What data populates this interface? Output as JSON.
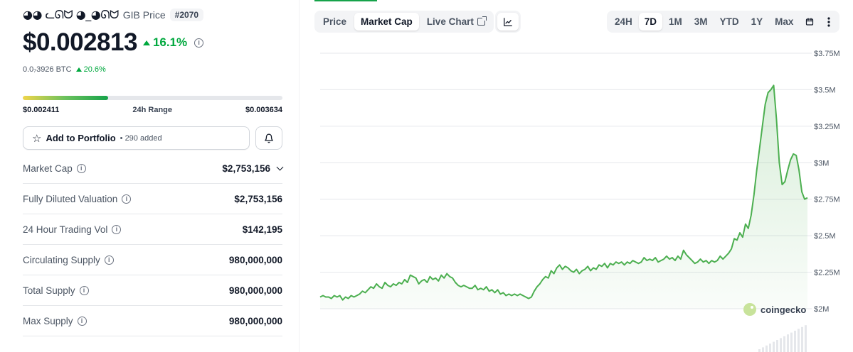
{
  "coin": {
    "logo_text": "◕◕ ᓚᘏᗢ ◕_◕ᘏᗢ",
    "name_label": "GIB Price",
    "rank": "#2070"
  },
  "price": {
    "value": "$0.002813",
    "change_24h": "16.1%",
    "btc_value": "0.0₇3926 BTC",
    "btc_change": "20.6%"
  },
  "range_24h": {
    "low": "$0.002411",
    "label": "24h Range",
    "high": "$0.003634",
    "position_fraction": 0.33
  },
  "portfolio": {
    "label": "Add to Portfolio",
    "count": "• 290 added"
  },
  "stats": [
    {
      "label": "Market Cap",
      "value": "$2,753,156",
      "has_chevron": true
    },
    {
      "label": "Fully Diluted Valuation",
      "value": "$2,753,156"
    },
    {
      "label": "24 Hour Trading Vol",
      "value": "$142,195"
    },
    {
      "label": "Circulating Supply",
      "value": "980,000,000"
    },
    {
      "label": "Total Supply",
      "value": "980,000,000"
    },
    {
      "label": "Max Supply",
      "value": "980,000,000"
    }
  ],
  "chart_tabs": [
    {
      "label": "Price",
      "active": false
    },
    {
      "label": "Market Cap",
      "active": true
    },
    {
      "label": "Live Chart",
      "active": false
    }
  ],
  "time_ranges": [
    {
      "label": "24H",
      "active": false
    },
    {
      "label": "7D",
      "active": true
    },
    {
      "label": "1M",
      "active": false
    },
    {
      "label": "3M",
      "active": false
    },
    {
      "label": "YTD",
      "active": false
    },
    {
      "label": "1Y",
      "active": false
    },
    {
      "label": "Max",
      "active": false
    }
  ],
  "icons": {
    "star": "star-icon",
    "bell": "bell-icon",
    "info": "info-icon",
    "external": "external-link-icon",
    "line_chart": "line-chart-icon",
    "calendar": "calendar-icon",
    "more": "more-vertical-icon"
  },
  "colors": {
    "up": "#00a83e",
    "line": "#4caf50",
    "fill": "#e8f5e9",
    "accent": "#16a34a"
  },
  "chart_data": {
    "type": "area",
    "watermark": "coingecko",
    "y_ticks": [
      "$3.75M",
      "$3.5M",
      "$3.25M",
      "$3M",
      "$2.75M",
      "$2.5M",
      "$2.25M",
      "$2M"
    ],
    "y_tick_values": [
      3.75,
      3.5,
      3.25,
      3.0,
      2.75,
      2.5,
      2.25,
      2.0
    ],
    "ylim": [
      2.0,
      3.75
    ],
    "grid": true,
    "series": [
      {
        "values": [
          2.08,
          2.09,
          2.08,
          2.08,
          2.07,
          2.09,
          2.08,
          2.09,
          2.06,
          2.08,
          2.07,
          2.09,
          2.08,
          2.09,
          2.1,
          2.12,
          2.11,
          2.13,
          2.15,
          2.14,
          2.17,
          2.15,
          2.14,
          2.18,
          2.16,
          2.15,
          2.17,
          2.16,
          2.18,
          2.17,
          2.2,
          2.18,
          2.23,
          2.22,
          2.21,
          2.17,
          2.19,
          2.2,
          2.18,
          2.22,
          2.2,
          2.21,
          2.19,
          2.23,
          2.21,
          2.24,
          2.22,
          2.21,
          2.18,
          2.16,
          2.15,
          2.16,
          2.15,
          2.14,
          2.14,
          2.16,
          2.13,
          2.14,
          2.13,
          2.15,
          2.12,
          2.13,
          2.11,
          2.13,
          2.1,
          2.11,
          2.09,
          2.1,
          2.09,
          2.1,
          2.09,
          2.1,
          2.09,
          2.08,
          2.07,
          2.08,
          2.12,
          2.15,
          2.17,
          2.2,
          2.22,
          2.21,
          2.26,
          2.24,
          2.28,
          2.3,
          2.27,
          2.29,
          2.28,
          2.26,
          2.25,
          2.27,
          2.24,
          2.26,
          2.27,
          2.29,
          2.26,
          2.28,
          2.27,
          2.3,
          2.29,
          2.31,
          2.28,
          2.31,
          2.3,
          2.32,
          2.31,
          2.32,
          2.3,
          2.32,
          2.31,
          2.33,
          2.32,
          2.31,
          2.32,
          2.35,
          2.33,
          2.34,
          2.33,
          2.35,
          2.32,
          2.33,
          2.34,
          2.36,
          2.34,
          2.35,
          2.33,
          2.36,
          2.34,
          2.4,
          2.37,
          2.35,
          2.33,
          2.31,
          2.32,
          2.34,
          2.32,
          2.33,
          2.31,
          2.33,
          2.32,
          2.33,
          2.36,
          2.34,
          2.36,
          2.38,
          2.41,
          2.48,
          2.47,
          2.52,
          2.49,
          2.58,
          2.55,
          2.64,
          2.78,
          2.95,
          3.1,
          3.25,
          3.4,
          3.48,
          3.5,
          3.53,
          3.3,
          3.0,
          2.85,
          2.87,
          2.95,
          3.02,
          3.06,
          3.05,
          2.95,
          2.8,
          2.75,
          2.76
        ]
      }
    ]
  }
}
